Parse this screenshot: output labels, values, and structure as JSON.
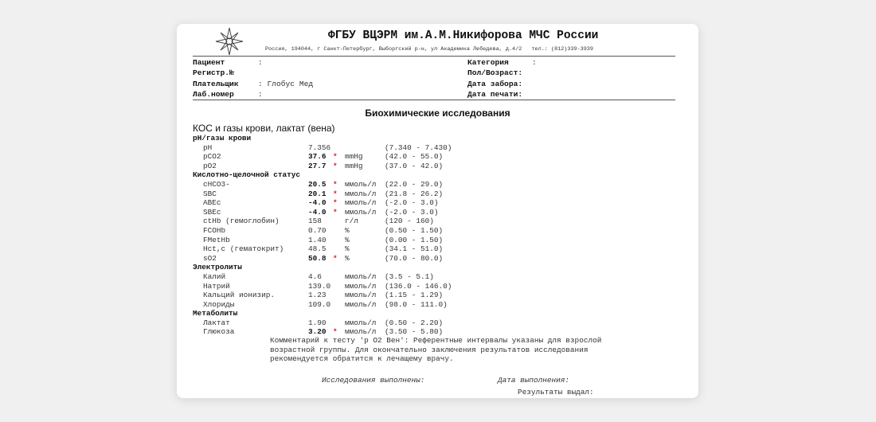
{
  "header": {
    "org_title": "ФГБУ ВЦЭРМ им.А.М.Никифорова МЧС России",
    "address": "Россия, 194044, г Санкт-Петербург, Выборгский р-н, ул Академика Лебедева, д.4/2   тел.: (812)339-3939"
  },
  "patient_info": {
    "left": [
      {
        "label": "Пациент",
        "value": ":"
      },
      {
        "label": "Регистр.№",
        "value": ""
      },
      {
        "label": "Плательщик",
        "value": ": Глобус Мед"
      },
      {
        "label": "Лаб.номер",
        "value": ":"
      }
    ],
    "right": [
      {
        "label": "Категория",
        "value": ":"
      },
      {
        "label": "Пол/Возраст:",
        "value": ""
      },
      {
        "label": "Дата забора:",
        "value": ""
      },
      {
        "label": "Дата печати:",
        "value": ""
      }
    ]
  },
  "report_title": "Биохимические исследования",
  "section_title": "КОС и газы крови, лактат (вена)",
  "rows": [
    {
      "group": "pH/газы крови"
    },
    {
      "name": "pH",
      "value": "7.356",
      "flag": "",
      "unit": "",
      "range": "(7.340 - 7.430)"
    },
    {
      "name": "pCO2",
      "value": "37.6",
      "flag": "*",
      "unit": "mmHg",
      "range": "(42.0 - 55.0)"
    },
    {
      "name": "pO2",
      "value": "27.7",
      "flag": "*",
      "unit": "mmHg",
      "range": "(37.0 - 42.0)"
    },
    {
      "group": "Кислотно-щелочной статус"
    },
    {
      "name": "cHCO3-",
      "value": "20.5",
      "flag": "*",
      "unit": "ммоль/л",
      "range": "(22.0 - 29.0)"
    },
    {
      "name": "SBC",
      "value": "20.1",
      "flag": "*",
      "unit": "ммоль/л",
      "range": "(21.8 - 26.2)"
    },
    {
      "name": "ABEc",
      "value": "-4.0",
      "flag": "*",
      "unit": "ммоль/л",
      "range": "(-2.0 - 3.0)"
    },
    {
      "name": "SBEc",
      "value": "-4.0",
      "flag": "*",
      "unit": "ммоль/л",
      "range": "(-2.0 - 3.0)"
    },
    {
      "name": "ctHb (гемоглобин)",
      "value": "158",
      "flag": "",
      "unit": "г/л",
      "range": "(120 - 160)"
    },
    {
      "name": "FCOHb",
      "value": "0.70",
      "flag": "",
      "unit": "%",
      "range": "(0.50 - 1.50)"
    },
    {
      "name": "FMetHb",
      "value": "1.40",
      "flag": "",
      "unit": "%",
      "range": "(0.00 - 1.50)"
    },
    {
      "name": "Hct,c (гематокрит)",
      "value": "48.5",
      "flag": "",
      "unit": "%",
      "range": "(34.1 - 51.0)"
    },
    {
      "name": "sO2",
      "value": "50.8",
      "flag": "*",
      "unit": "%",
      "range": "(70.0 - 80.0)"
    },
    {
      "group": "Электролиты"
    },
    {
      "name": "Калий",
      "value": "4.6",
      "flag": "",
      "unit": "ммоль/л",
      "range": "(3.5 - 5.1)"
    },
    {
      "name": "Натрий",
      "value": "139.0",
      "flag": "",
      "unit": "ммоль/л",
      "range": "(136.0 - 146.0)"
    },
    {
      "name": "Кальций ионизир.",
      "value": "1.23",
      "flag": "",
      "unit": "ммоль/л",
      "range": "(1.15 - 1.29)"
    },
    {
      "name": "Хлориды",
      "value": "109.0",
      "flag": "",
      "unit": "ммоль/л",
      "range": "(98.0 - 111.0)"
    },
    {
      "group": "Метаболиты"
    },
    {
      "name": "Лактат",
      "value": "1.90",
      "flag": "",
      "unit": "ммоль/л",
      "range": "(0.50 - 2.20)"
    },
    {
      "name": "Глюкоза",
      "value": "3.20",
      "flag": "*",
      "unit": "ммоль/л",
      "range": "(3.50 - 5.80)"
    }
  ],
  "comment": "Комментарий к тесту 'р О2 Вен': Референтные интервалы указаны для взрослой\nвозрастной группы. Для окончательно заключения результатов исследования\nрекомендуется обратится к лечащему врачу.",
  "footer": {
    "performed": "Исследования выполнены:",
    "date_performed": "Дата выполнения:",
    "issued_by": "Результаты выдал:"
  },
  "colors": {
    "flag": "#e02020",
    "background": "#f0f0f0"
  }
}
